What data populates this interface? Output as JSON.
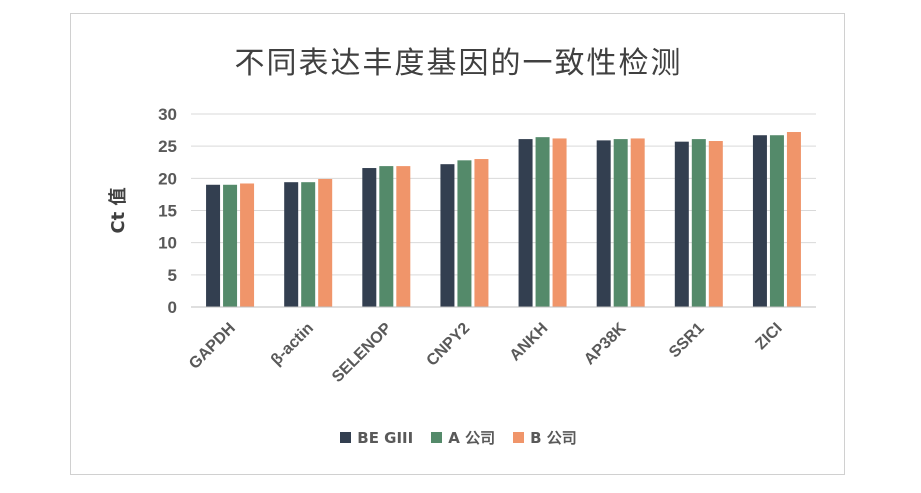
{
  "chart_data": {
    "type": "bar",
    "title": "不同表达丰度基因的一致性检测",
    "xlabel": "",
    "ylabel": "Ct 值",
    "ylim": [
      0,
      30
    ],
    "yticks": [
      0,
      5,
      10,
      15,
      20,
      25,
      30
    ],
    "grid": true,
    "legend_position": "bottom",
    "categories": [
      "GAPDH",
      "β-actin",
      "SELENOP",
      "CNPY2",
      "ANKH",
      "AP38K",
      "SSR1",
      "ZICI"
    ],
    "series": [
      {
        "name": "BE GIII",
        "color": "#333f50",
        "values": [
          19.0,
          19.4,
          21.6,
          22.2,
          26.1,
          25.9,
          25.7,
          26.7
        ]
      },
      {
        "name": "A 公司",
        "color": "#548a6a",
        "values": [
          19.0,
          19.4,
          21.9,
          22.8,
          26.4,
          26.1,
          26.1,
          26.7
        ]
      },
      {
        "name": "B 公司",
        "color": "#f0956a",
        "values": [
          19.2,
          19.9,
          21.9,
          23.0,
          26.2,
          26.2,
          25.8,
          27.2
        ]
      }
    ]
  }
}
